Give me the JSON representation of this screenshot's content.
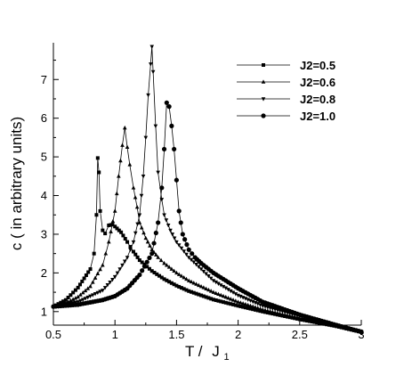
{
  "chart_data": {
    "type": "line",
    "title": "",
    "xlabel": "T /",
    "xlabel_symbol": "J",
    "xlabel_subscript": "1",
    "ylabel": "c ( in arbitrary units)",
    "xlim": [
      0.5,
      3.0
    ],
    "ylim": [
      0.65,
      7.95
    ],
    "x_ticks": [
      "0.5",
      "1",
      "1.5",
      "2",
      "2.5",
      "3"
    ],
    "y_ticks": [
      "1",
      "2",
      "3",
      "4",
      "5",
      "6",
      "7"
    ],
    "grid": false,
    "legend_position": "top-right",
    "series": [
      {
        "name": "J2=0.5",
        "marker": "square",
        "x": [
          0.5,
          0.6,
          0.7,
          0.75,
          0.8,
          0.83,
          0.85,
          0.86,
          0.87,
          0.88,
          0.9,
          0.92,
          0.95,
          0.98,
          1.0,
          1.05,
          1.1,
          1.15,
          1.2,
          1.3,
          1.4,
          1.5,
          1.6,
          1.8,
          2.0,
          2.2,
          2.5,
          2.8,
          3.0
        ],
        "y": [
          1.13,
          1.3,
          1.62,
          1.86,
          2.1,
          2.5,
          3.5,
          4.97,
          4.6,
          3.6,
          3.1,
          3.02,
          3.23,
          3.25,
          3.2,
          3.05,
          2.8,
          2.55,
          2.33,
          2.05,
          1.84,
          1.67,
          1.53,
          1.31,
          1.15,
          1.0,
          0.8,
          0.62,
          0.47
        ]
      },
      {
        "name": "J2=0.6",
        "marker": "triangle-up",
        "x": [
          0.5,
          0.6,
          0.7,
          0.8,
          0.9,
          0.95,
          1.0,
          1.03,
          1.06,
          1.08,
          1.1,
          1.12,
          1.15,
          1.18,
          1.2,
          1.25,
          1.3,
          1.35,
          1.4,
          1.5,
          1.6,
          1.8,
          2.0,
          2.2,
          2.5,
          2.8,
          3.0
        ],
        "y": [
          1.13,
          1.22,
          1.38,
          1.65,
          2.2,
          2.8,
          3.6,
          4.5,
          5.3,
          5.75,
          5.25,
          4.8,
          4.2,
          3.7,
          3.3,
          2.9,
          2.6,
          2.4,
          2.25,
          2.0,
          1.8,
          1.5,
          1.25,
          1.05,
          0.82,
          0.62,
          0.47
        ]
      },
      {
        "name": "J2=0.8",
        "marker": "triangle-down",
        "x": [
          0.5,
          0.7,
          0.9,
          1.0,
          1.1,
          1.15,
          1.2,
          1.23,
          1.25,
          1.27,
          1.29,
          1.3,
          1.31,
          1.33,
          1.35,
          1.38,
          1.4,
          1.45,
          1.5,
          1.6,
          1.7,
          1.8,
          2.0,
          2.2,
          2.5,
          2.8,
          3.0
        ],
        "y": [
          1.13,
          1.25,
          1.55,
          1.9,
          2.4,
          2.8,
          3.5,
          4.5,
          5.5,
          6.6,
          7.4,
          7.85,
          7.2,
          5.8,
          4.6,
          3.9,
          3.5,
          3.1,
          2.8,
          2.4,
          2.1,
          1.8,
          1.42,
          1.15,
          0.88,
          0.64,
          0.48
        ]
      },
      {
        "name": "J2=1.0",
        "marker": "circle",
        "x": [
          0.5,
          0.7,
          0.9,
          1.0,
          1.1,
          1.2,
          1.3,
          1.35,
          1.38,
          1.4,
          1.42,
          1.44,
          1.46,
          1.48,
          1.5,
          1.52,
          1.55,
          1.6,
          1.65,
          1.7,
          1.8,
          2.0,
          2.2,
          2.5,
          2.8,
          3.0
        ],
        "y": [
          1.13,
          1.18,
          1.3,
          1.4,
          1.6,
          1.95,
          2.5,
          3.3,
          4.2,
          5.2,
          6.4,
          6.3,
          5.8,
          5.2,
          4.4,
          3.6,
          3.0,
          2.6,
          2.4,
          2.25,
          2.0,
          1.6,
          1.25,
          0.92,
          0.65,
          0.48
        ]
      }
    ]
  }
}
